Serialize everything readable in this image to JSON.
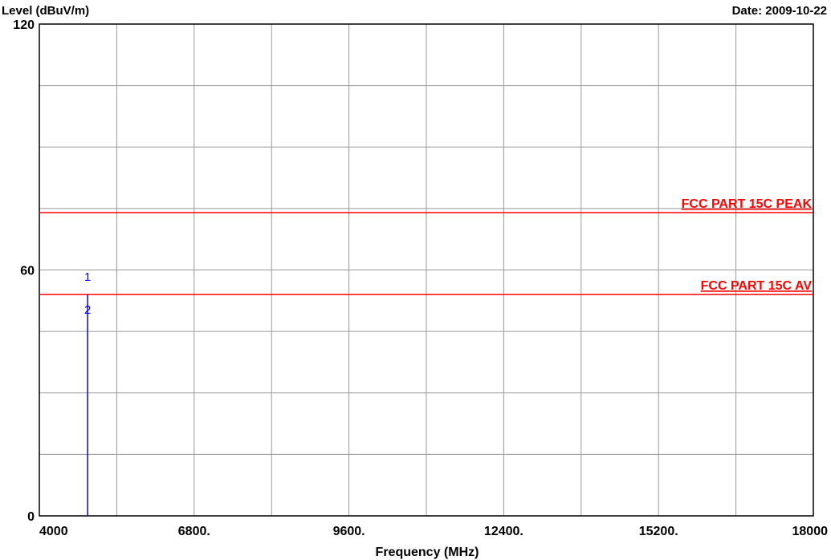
{
  "chart_data": {
    "type": "line",
    "ylabel": "Level (dBuV/m)",
    "xlabel": "Frequency (MHz)",
    "date_label": "Date: 2009-10-22",
    "xlim": [
      4000,
      18000
    ],
    "ylim": [
      0,
      120
    ],
    "grid": true,
    "x_gridlines": [
      4000,
      5400,
      6800,
      8200,
      9600,
      11000,
      12400,
      13800,
      15200,
      16600,
      18000
    ],
    "y_gridlines": [
      0,
      15,
      30,
      45,
      60,
      75,
      90,
      105,
      120
    ],
    "x_ticks": [
      {
        "value": 4000,
        "label": "4000"
      },
      {
        "value": 6800,
        "label": "6800."
      },
      {
        "value": 9600,
        "label": "9600."
      },
      {
        "value": 12400,
        "label": "12400."
      },
      {
        "value": 15200,
        "label": "15200."
      },
      {
        "value": 18000,
        "label": "18000"
      }
    ],
    "y_ticks": [
      {
        "value": 0,
        "label": "0"
      },
      {
        "value": 60,
        "label": "60"
      },
      {
        "value": 120,
        "label": "120"
      }
    ],
    "limit_lines": [
      {
        "name": "FCC PART 15C  PEAK",
        "value": 74,
        "color": "#ff0000"
      },
      {
        "name": "FCC PART 15C AV",
        "value": 54,
        "color": "#ff0000"
      }
    ],
    "series": [
      {
        "color": "#0000ff",
        "x": [
          4874,
          4874
        ],
        "y": [
          0,
          54
        ]
      }
    ],
    "markers": [
      {
        "label": "1",
        "x": 4874,
        "y": 58.5,
        "color": "#0000ff"
      },
      {
        "label": "2",
        "x": 4874,
        "y": 50.5,
        "color": "#0000ff"
      }
    ]
  }
}
